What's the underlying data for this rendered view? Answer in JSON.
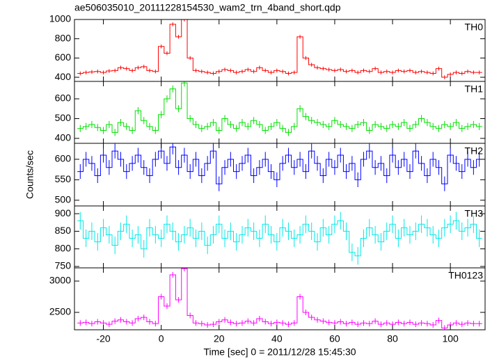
{
  "chart_data": {
    "type": "step",
    "title": "ae506035010_20111228154530_wam2_trn_4band_short.qdp",
    "ylabel": "Counts/sec",
    "xlabel": "Time [sec] 0 = 2011/12/28 15:45:30",
    "xlim": [
      -30,
      112
    ],
    "xticks": [
      -20,
      0,
      20,
      40,
      60,
      80,
      100
    ],
    "x": [
      -28,
      -26,
      -24,
      -22,
      -20,
      -18,
      -16,
      -14,
      -12,
      -10,
      -8,
      -6,
      -4,
      -2,
      0,
      2,
      4,
      6,
      8,
      10,
      12,
      14,
      16,
      18,
      20,
      22,
      24,
      26,
      28,
      30,
      32,
      34,
      36,
      38,
      40,
      42,
      44,
      46,
      48,
      50,
      52,
      54,
      56,
      58,
      60,
      62,
      64,
      66,
      68,
      70,
      72,
      74,
      76,
      78,
      80,
      82,
      84,
      86,
      88,
      90,
      92,
      94,
      96,
      98,
      100,
      102,
      104,
      106,
      108,
      110
    ],
    "series": [
      {
        "name": "TH0",
        "color": "#ff0000",
        "error": 20,
        "ylim": [
          357,
          1000
        ],
        "yticks": [
          400,
          600,
          800,
          1000
        ],
        "values": [
          440,
          450,
          455,
          460,
          450,
          465,
          470,
          500,
          490,
          470,
          500,
          510,
          470,
          460,
          720,
          650,
          950,
          820,
          1000,
          600,
          470,
          460,
          450,
          440,
          460,
          480,
          470,
          450,
          460,
          480,
          460,
          500,
          470,
          450,
          470,
          460,
          440,
          450,
          820,
          600,
          530,
          500,
          490,
          480,
          470,
          480,
          460,
          470,
          450,
          470,
          460,
          490,
          450,
          460,
          450,
          470,
          460,
          470,
          450,
          460,
          450,
          440,
          490,
          400,
          430,
          450,
          440,
          460,
          450,
          450
        ]
      },
      {
        "name": "TH1",
        "color": "#00e000",
        "error": 18,
        "ylim": [
          375,
          688
        ],
        "yticks": [
          400,
          500,
          600
        ],
        "values": [
          450,
          460,
          470,
          455,
          440,
          470,
          430,
          480,
          460,
          440,
          540,
          490,
          460,
          440,
          520,
          600,
          650,
          550,
          680,
          500,
          470,
          450,
          460,
          480,
          440,
          500,
          470,
          450,
          480,
          460,
          490,
          470,
          440,
          460,
          480,
          450,
          430,
          460,
          550,
          510,
          490,
          480,
          470,
          460,
          490,
          470,
          460,
          450,
          470,
          480,
          440,
          470,
          460,
          450,
          470,
          460,
          480,
          450,
          470,
          500,
          480,
          460,
          450,
          470,
          460,
          480,
          450,
          460,
          470,
          460
        ]
      },
      {
        "name": "TH2",
        "color": "#0000ff",
        "error": 18,
        "ylim": [
          486,
          639
        ],
        "yticks": [
          500,
          550,
          600
        ],
        "values": [
          570,
          600,
          590,
          560,
          610,
          580,
          620,
          600,
          570,
          590,
          610,
          580,
          560,
          600,
          620,
          590,
          630,
          580,
          610,
          570,
          600,
          560,
          590,
          620,
          540,
          580,
          600,
          570,
          590,
          610,
          560,
          580,
          600,
          570,
          550,
          590,
          610,
          580,
          600,
          570,
          620,
          590,
          560,
          600,
          580,
          610,
          570,
          590,
          550,
          600,
          620,
          580,
          590,
          560,
          610,
          580,
          600,
          570,
          620,
          590,
          560,
          600,
          580,
          540,
          610,
          590,
          570,
          600,
          580,
          600
        ]
      },
      {
        "name": "TH3",
        "color": "#00e8e8",
        "error": 25,
        "ylim": [
          746,
          922
        ],
        "yticks": [
          750,
          800,
          850,
          900
        ],
        "values": [
          880,
          830,
          850,
          820,
          860,
          840,
          810,
          850,
          870,
          830,
          840,
          800,
          860,
          840,
          830,
          870,
          850,
          820,
          840,
          860,
          830,
          850,
          810,
          840,
          870,
          830,
          850,
          820,
          840,
          860,
          850,
          830,
          870,
          840,
          820,
          860,
          850,
          830,
          840,
          870,
          850,
          820,
          860,
          840,
          870,
          880,
          850,
          790,
          780,
          830,
          860,
          840,
          820,
          850,
          870,
          830,
          860,
          840,
          850,
          870,
          860,
          840,
          830,
          860,
          870,
          880,
          850,
          860,
          870,
          830
        ]
      },
      {
        "name": "TH0123",
        "color": "#ff00ff",
        "error": 45,
        "ylim": [
          2222,
          3211
        ],
        "yticks": [
          2500,
          3000
        ],
        "values": [
          2330,
          2340,
          2320,
          2350,
          2330,
          2310,
          2360,
          2380,
          2350,
          2330,
          2400,
          2420,
          2350,
          2320,
          2750,
          2600,
          3100,
          2700,
          3200,
          2450,
          2330,
          2320,
          2300,
          2310,
          2350,
          2380,
          2340,
          2320,
          2330,
          2360,
          2330,
          2400,
          2350,
          2320,
          2340,
          2330,
          2310,
          2330,
          2750,
          2500,
          2420,
          2380,
          2360,
          2340,
          2330,
          2350,
          2320,
          2340,
          2310,
          2330,
          2320,
          2360,
          2310,
          2330,
          2310,
          2340,
          2320,
          2340,
          2310,
          2330,
          2320,
          2300,
          2370,
          2250,
          2300,
          2330,
          2310,
          2330,
          2320,
          2320
        ]
      }
    ]
  }
}
